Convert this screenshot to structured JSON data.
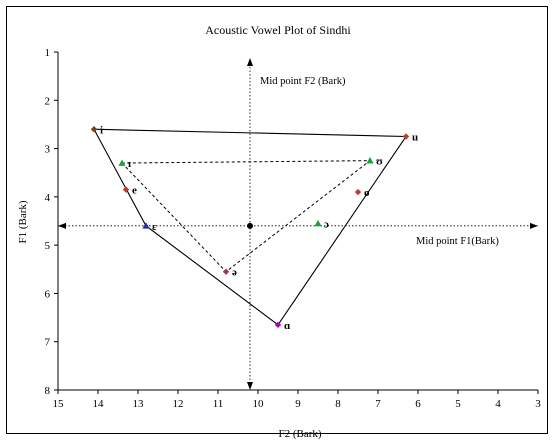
{
  "chart_data": {
    "type": "scatter",
    "title": "Acoustic Vowel Plot of Sindhi",
    "xlabel": "F2 (Bark)",
    "ylabel": "F1  (Bark)",
    "xlim": [
      15,
      3
    ],
    "ylim": [
      8,
      1
    ],
    "x_reversed": true,
    "y_reversed": true,
    "x_ticks": [
      "15",
      "14",
      "13",
      "12",
      "11",
      "10",
      "9",
      "8",
      "7",
      "6",
      "5",
      "4",
      "3"
    ],
    "y_ticks": [
      "1",
      "2",
      "3",
      "4",
      "5",
      "6",
      "7",
      "8"
    ],
    "grid": false,
    "points": [
      {
        "label": "i",
        "x": 14.1,
        "y": 2.6,
        "marker": "diamond",
        "color": "#7f3f10"
      },
      {
        "label": "ɪ",
        "x": 13.4,
        "y": 3.3,
        "marker": "triangle",
        "color": "#1aa33a"
      },
      {
        "label": "e",
        "x": 13.3,
        "y": 3.85,
        "marker": "diamond",
        "color": "#c0392b"
      },
      {
        "label": "ɛ",
        "x": 12.8,
        "y": 4.6,
        "marker": "triangle",
        "color": "#1f2fb0"
      },
      {
        "label": "ə",
        "x": 10.8,
        "y": 5.55,
        "marker": "diamond",
        "color": "#a0306a"
      },
      {
        "label": "ɑ",
        "x": 9.5,
        "y": 6.65,
        "marker": "diamond",
        "color": "#b000c0"
      },
      {
        "label": "ɔ",
        "x": 8.5,
        "y": 4.55,
        "marker": "triangle",
        "color": "#1aa33a"
      },
      {
        "label": "o",
        "x": 7.5,
        "y": 3.9,
        "marker": "diamond",
        "color": "#c0392b"
      },
      {
        "label": "ʊ",
        "x": 7.2,
        "y": 3.25,
        "marker": "triangle",
        "color": "#1aa33a"
      },
      {
        "label": "u",
        "x": 6.3,
        "y": 2.75,
        "marker": "diamond",
        "color": "#c0392b"
      }
    ],
    "midpoint": {
      "x": 10.2,
      "y": 4.6,
      "color": "#000000"
    },
    "solid_polygon": [
      "i",
      "ɛ",
      "ɑ",
      "u"
    ],
    "dashed_polygon": [
      "ɪ",
      "ə",
      "ʊ"
    ],
    "annotations": {
      "vertical_line": "Mid point F2 (Bark)",
      "horizontal_line": "Mid point F1(Bark)"
    }
  }
}
